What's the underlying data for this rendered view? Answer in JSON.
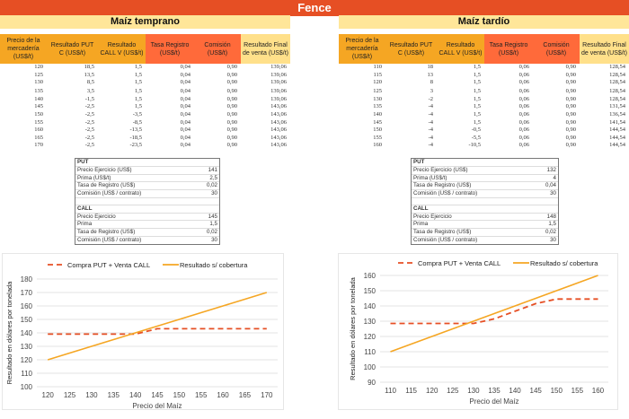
{
  "banner": {
    "title": "Fence"
  },
  "colors": {
    "banner": "#e64f24",
    "section": "#ffe699",
    "header_orange": "#f5a623",
    "header_red": "#ff6a3a",
    "header_yellow": "#ffe08a",
    "series_fence": "#e64f24",
    "series_uncovered": "#f5a623"
  },
  "left": {
    "title": "Maíz temprano",
    "headers": [
      "Precio de la mercadería (US$/t)",
      "Resultado PUT C (US$/t)",
      "Resultado CALL V (US$/t)",
      "Tasa Registro (US$/t)",
      "Comisión (US$/t)",
      "Resultado Final de venta (US$/t)"
    ],
    "rows": [
      [
        "120",
        "18,5",
        "1,5",
        "0,04",
        "0,90",
        "139,06"
      ],
      [
        "125",
        "13,5",
        "1,5",
        "0,04",
        "0,90",
        "139,06"
      ],
      [
        "130",
        "8,5",
        "1,5",
        "0,04",
        "0,90",
        "139,06"
      ],
      [
        "135",
        "3,5",
        "1,5",
        "0,04",
        "0,90",
        "139,06"
      ],
      [
        "140",
        "-1,5",
        "1,5",
        "0,04",
        "0,90",
        "139,06"
      ],
      [
        "145",
        "-2,5",
        "1,5",
        "0,04",
        "0,90",
        "143,06"
      ],
      [
        "150",
        "-2,5",
        "-3,5",
        "0,04",
        "0,90",
        "143,06"
      ],
      [
        "155",
        "-2,5",
        "-8,5",
        "0,04",
        "0,90",
        "143,06"
      ],
      [
        "160",
        "-2,5",
        "-13,5",
        "0,04",
        "0,90",
        "143,06"
      ],
      [
        "165",
        "-2,5",
        "-18,5",
        "0,04",
        "0,90",
        "143,06"
      ],
      [
        "170",
        "-2,5",
        "-23,5",
        "0,04",
        "0,90",
        "143,06"
      ]
    ],
    "params": {
      "put_title": "PUT",
      "put": [
        [
          "Precio Ejercicio (US$)",
          "141"
        ],
        [
          "Prima (US$/t)",
          "2,5"
        ],
        [
          "Tasa de Registro (US$)",
          "0,02"
        ],
        [
          "Comisión (US$ / contrato)",
          "30"
        ]
      ],
      "call_title": "CALL",
      "call": [
        [
          "Precio Ejercicio",
          "145"
        ],
        [
          "Prima",
          "1,5"
        ],
        [
          "Tasa de Registro (US$)",
          "0,02"
        ],
        [
          "Comisión (US$ / contrato)",
          "30"
        ]
      ]
    }
  },
  "right": {
    "title": "Maíz tardío",
    "headers": [
      "Precio de la mercadería (US$/t)",
      "Resultado PUT C (US$/t)",
      "Resultado CALL V (US$/t)",
      "Tasa Registro (US$/t)",
      "Comisión (US$/t)",
      "Resultado Final de venta (US$/t)"
    ],
    "rows": [
      [
        "110",
        "18",
        "1,5",
        "0,06",
        "0,90",
        "128,54"
      ],
      [
        "115",
        "13",
        "1,5",
        "0,06",
        "0,90",
        "128,54"
      ],
      [
        "120",
        "8",
        "1,5",
        "0,06",
        "0,90",
        "128,54"
      ],
      [
        "125",
        "3",
        "1,5",
        "0,06",
        "0,90",
        "128,54"
      ],
      [
        "130",
        "-2",
        "1,5",
        "0,06",
        "0,90",
        "128,54"
      ],
      [
        "135",
        "-4",
        "1,5",
        "0,06",
        "0,90",
        "131,54"
      ],
      [
        "140",
        "-4",
        "1,5",
        "0,06",
        "0,90",
        "136,54"
      ],
      [
        "145",
        "-4",
        "1,5",
        "0,06",
        "0,90",
        "141,54"
      ],
      [
        "150",
        "-4",
        "-0,5",
        "0,06",
        "0,90",
        "144,54"
      ],
      [
        "155",
        "-4",
        "-5,5",
        "0,06",
        "0,90",
        "144,54"
      ],
      [
        "160",
        "-4",
        "-10,5",
        "0,06",
        "0,90",
        "144,54"
      ]
    ],
    "params": {
      "put_title": "PUT",
      "put": [
        [
          "Precio Ejercicio (US$)",
          "132"
        ],
        [
          "Prima (US$/t)",
          "4"
        ],
        [
          "Tasa de Registro (US$)",
          "0,04"
        ],
        [
          "Comisión (US$ / contrato)",
          "30"
        ]
      ],
      "call_title": "CALL",
      "call": [
        [
          "Precio Ejercicio",
          "148"
        ],
        [
          "Prima",
          "1,5"
        ],
        [
          "Tasa de Registro (US$)",
          "0,02"
        ],
        [
          "Comisión (US$ / contrato)",
          "30"
        ]
      ]
    }
  },
  "chart_data": [
    {
      "type": "line",
      "title": "",
      "xlabel": "Precio del Maíz",
      "ylabel": "Resultado en dólares por tonelada",
      "x": [
        120,
        125,
        130,
        135,
        140,
        145,
        150,
        155,
        160,
        165,
        170
      ],
      "xticks": [
        "120",
        "125",
        "130",
        "135",
        "140",
        "145",
        "150",
        "155",
        "160",
        "165",
        "170"
      ],
      "ylim": [
        100,
        180
      ],
      "yticks": [
        "100",
        "110",
        "120",
        "130",
        "140",
        "150",
        "160",
        "170",
        "180"
      ],
      "legend": "top",
      "grid": true,
      "series": [
        {
          "name": "Compra PUT + Venta CALL",
          "style": "dashed",
          "values": [
            139.06,
            139.06,
            139.06,
            139.06,
            139.06,
            143.06,
            143.06,
            143.06,
            143.06,
            143.06,
            143.06
          ]
        },
        {
          "name": "Resultado s/ cobertura",
          "style": "solid",
          "values": [
            120,
            125,
            130,
            135,
            140,
            145,
            150,
            155,
            160,
            165,
            170
          ]
        }
      ]
    },
    {
      "type": "line",
      "title": "",
      "xlabel": "Precio del Maíz",
      "ylabel": "Resultado en dólares por tonelada",
      "x": [
        110,
        115,
        120,
        125,
        130,
        135,
        140,
        145,
        150,
        155,
        160
      ],
      "xticks": [
        "110",
        "115",
        "120",
        "125",
        "130",
        "135",
        "140",
        "145",
        "150",
        "155",
        "160"
      ],
      "ylim": [
        90,
        160
      ],
      "yticks": [
        "90",
        "100",
        "110",
        "120",
        "130",
        "140",
        "150",
        "160"
      ],
      "legend": "top",
      "grid": true,
      "series": [
        {
          "name": "Compra PUT + Venta CALL",
          "style": "dashed",
          "values": [
            128.54,
            128.54,
            128.54,
            128.54,
            128.54,
            131.54,
            136.54,
            141.54,
            144.54,
            144.54,
            144.54
          ]
        },
        {
          "name": "Resultado s/ cobertura",
          "style": "solid",
          "values": [
            110,
            115,
            120,
            125,
            130,
            135,
            140,
            145,
            150,
            155,
            160
          ]
        }
      ]
    }
  ]
}
